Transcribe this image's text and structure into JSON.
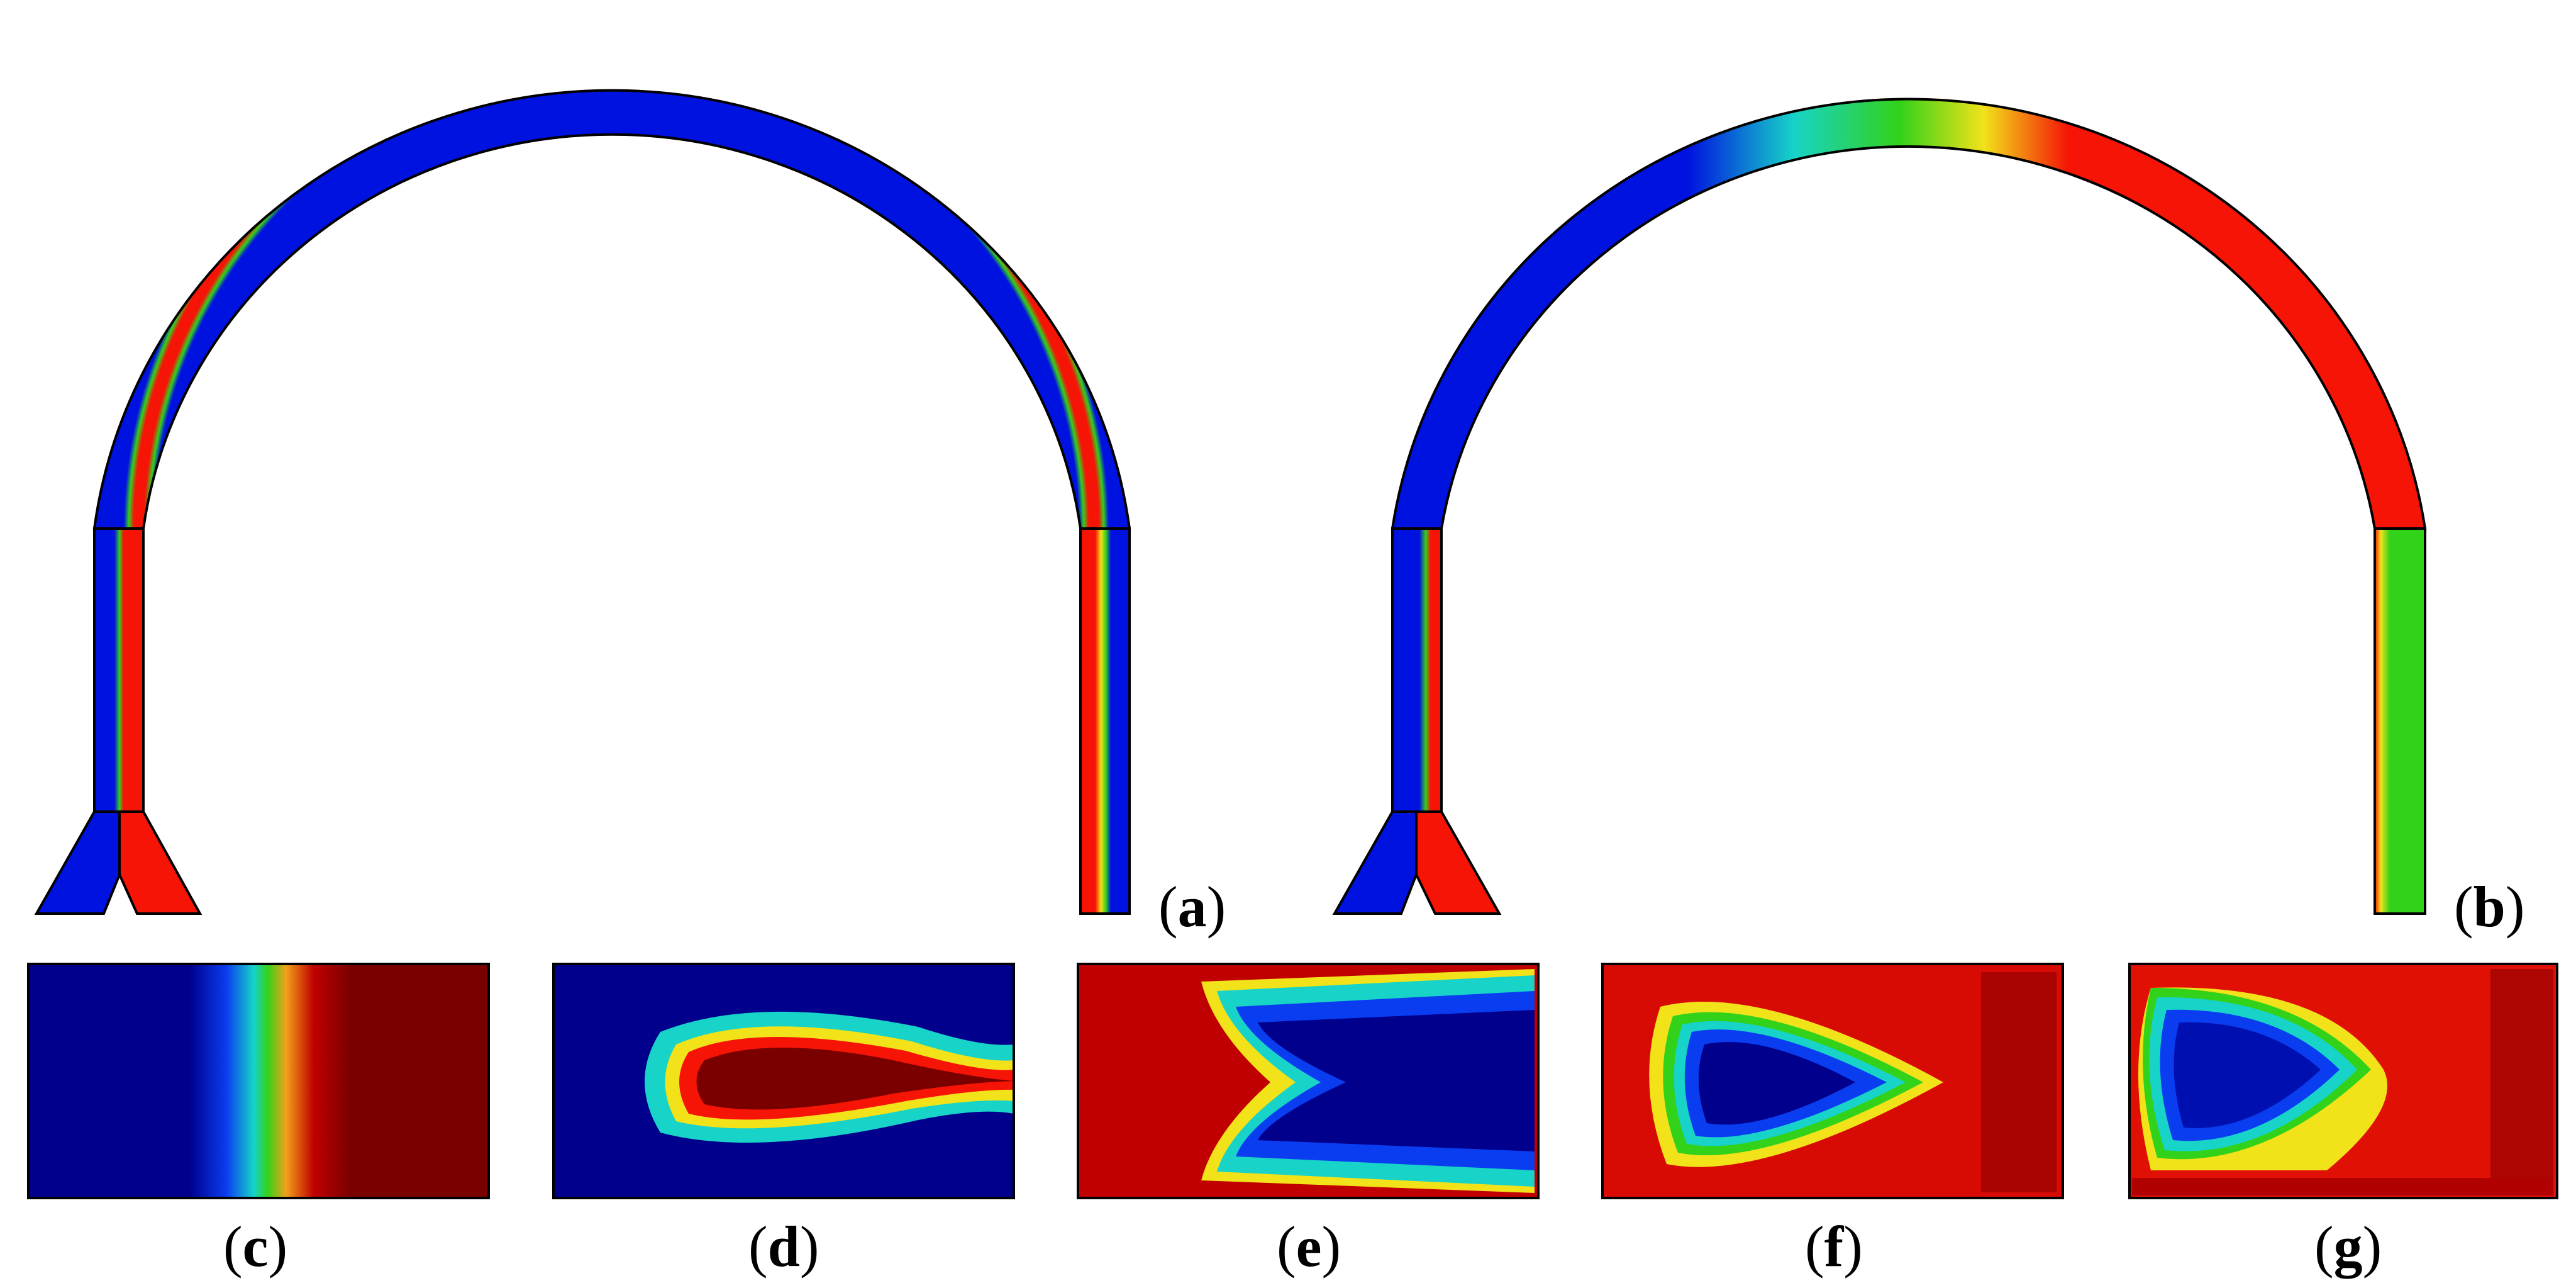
{
  "panels": [
    {
      "id": "a",
      "open": "(",
      "letter": "a",
      "close": ")"
    },
    {
      "id": "b",
      "open": "(",
      "letter": "b",
      "close": ")"
    },
    {
      "id": "c",
      "open": "(",
      "letter": "c",
      "close": ")"
    },
    {
      "id": "d",
      "open": "(",
      "letter": "d",
      "close": ")"
    },
    {
      "id": "e",
      "open": "(",
      "letter": "e",
      "close": ")"
    },
    {
      "id": "f",
      "open": "(",
      "letter": "f",
      "close": ")"
    },
    {
      "id": "g",
      "open": "(",
      "letter": "g",
      "close": ")"
    }
  ],
  "colormap": {
    "blue": "#0012e0",
    "dark_blue": "#00008c",
    "cyan": "#17d3c8",
    "green": "#32d21a",
    "yellow": "#f2e21a",
    "red": "#f51406",
    "dark_red": "#7a0000"
  }
}
